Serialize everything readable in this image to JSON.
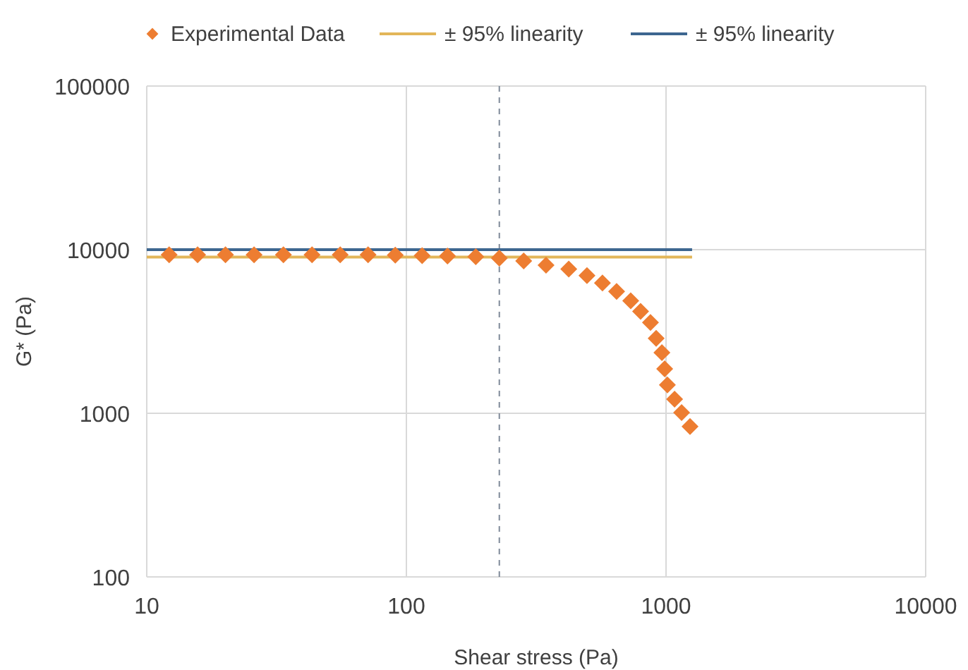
{
  "chart_data": {
    "type": "scatter",
    "xlabel": "Shear stress (Pa)",
    "ylabel": "G* (Pa)",
    "log": "xy",
    "xlim": [
      10,
      10000
    ],
    "xticks": [
      10,
      100,
      1000,
      10000
    ],
    "ylim": [
      100,
      100000
    ],
    "yticks": [
      100,
      1000,
      10000,
      100000
    ],
    "grid": true,
    "legend": "top",
    "series": [
      {
        "name": "Experimental Data",
        "color": "#ed7d31",
        "marker": "diamond",
        "x": [
          12.2,
          15.7,
          20.1,
          25.9,
          33.6,
          43.3,
          55.6,
          71.2,
          90.6,
          115,
          144,
          185,
          228,
          283,
          345,
          422,
          496,
          569,
          645,
          731,
          798,
          871,
          916,
          964,
          988,
          1012,
          1079,
          1148,
          1237
        ],
        "values": [
          9300,
          9300,
          9300,
          9300,
          9300,
          9300,
          9300,
          9300,
          9250,
          9200,
          9150,
          9050,
          8870,
          8530,
          8040,
          7620,
          6950,
          6250,
          5550,
          4870,
          4200,
          3590,
          2870,
          2350,
          1870,
          1490,
          1220,
          1010,
          830
        ]
      },
      {
        "name": "± 95% linearity",
        "type": "line",
        "marker": "none",
        "color": "#e2b659",
        "x": [
          10,
          1260
        ],
        "values": [
          9000,
          9000
        ]
      },
      {
        "name": "± 95% linearity",
        "type": "line",
        "marker": "none",
        "color": "#3d6690",
        "x": [
          10,
          1260
        ],
        "values": [
          10000,
          10000
        ]
      }
    ],
    "ref_lines": [
      {
        "axis": "x",
        "value": 228,
        "color": "#7f8a99",
        "line_style": "dashed"
      }
    ]
  }
}
